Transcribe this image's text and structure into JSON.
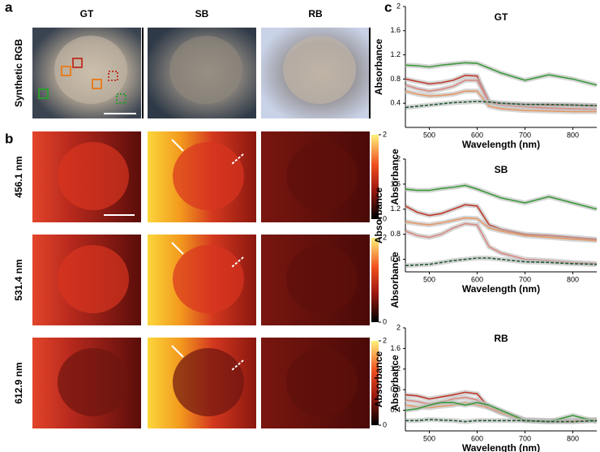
{
  "panels": {
    "a": {
      "letter": "a",
      "columns": [
        "GT",
        "SB",
        "RB"
      ],
      "row_label": "Synthetic RGB"
    },
    "b": {
      "letter": "b",
      "rows": [
        "456.1 nm",
        "531.4 nm",
        "612.9 nm"
      ],
      "colorbar_label": "Absorbance",
      "colorbar_ticks": [
        2,
        0
      ]
    },
    "c": {
      "letter": "c"
    }
  },
  "chart_data": [
    {
      "type": "line",
      "title": "GT",
      "x_label": "Wavelength (nm)",
      "y_label": "Absorbance",
      "xlim": [
        450,
        850
      ],
      "ylim": [
        0,
        2
      ],
      "xticks": [
        500,
        600,
        700,
        800
      ],
      "yticks": [
        0.4,
        0.8,
        1.2,
        1.6,
        2
      ],
      "x": [
        450,
        475,
        500,
        525,
        550,
        575,
        600,
        625,
        650,
        700,
        750,
        800,
        850
      ],
      "series": [
        {
          "color": "#3c9a3c",
          "values": [
            1.03,
            1.02,
            1.0,
            1.03,
            1.05,
            1.07,
            1.06,
            0.98,
            0.9,
            0.78,
            0.87,
            0.8,
            0.7
          ]
        },
        {
          "color": "#c0392b",
          "values": [
            0.8,
            0.76,
            0.72,
            0.74,
            0.78,
            0.86,
            0.85,
            0.42,
            0.4,
            0.38,
            0.37,
            0.37,
            0.36
          ]
        },
        {
          "color": "#d98880",
          "values": [
            0.7,
            0.64,
            0.6,
            0.63,
            0.68,
            0.78,
            0.78,
            0.42,
            0.37,
            0.34,
            0.32,
            0.31,
            0.3
          ]
        },
        {
          "color": "#e59866",
          "values": [
            0.6,
            0.55,
            0.52,
            0.53,
            0.55,
            0.6,
            0.6,
            0.35,
            0.31,
            0.28,
            0.27,
            0.26,
            0.26
          ]
        },
        {
          "color": "#1e5631",
          "dash": true,
          "values": [
            0.33,
            0.35,
            0.37,
            0.39,
            0.41,
            0.42,
            0.43,
            0.42,
            0.4,
            0.38,
            0.38,
            0.37,
            0.36
          ]
        }
      ]
    },
    {
      "type": "line",
      "title": "SB",
      "x_label": "Wavelength (nm)",
      "y_label": "Absorbance",
      "xlim": [
        450,
        850
      ],
      "ylim": [
        0.2,
        2
      ],
      "xticks": [
        500,
        600,
        700,
        800
      ],
      "yticks": [
        0.4,
        0.8,
        1.2,
        1.6,
        2
      ],
      "x": [
        450,
        475,
        500,
        525,
        550,
        575,
        600,
        625,
        650,
        700,
        750,
        800,
        850
      ],
      "series": [
        {
          "color": "#3c9a3c",
          "values": [
            1.52,
            1.5,
            1.5,
            1.53,
            1.55,
            1.58,
            1.52,
            1.45,
            1.38,
            1.3,
            1.4,
            1.3,
            1.2
          ]
        },
        {
          "color": "#c0392b",
          "values": [
            1.25,
            1.15,
            1.1,
            1.13,
            1.2,
            1.27,
            1.25,
            0.95,
            0.88,
            0.8,
            0.78,
            0.75,
            0.72
          ]
        },
        {
          "color": "#e59866",
          "values": [
            1.0,
            0.97,
            0.95,
            0.98,
            1.02,
            1.06,
            1.05,
            0.9,
            0.85,
            0.78,
            0.75,
            0.72,
            0.7
          ]
        },
        {
          "color": "#d98880",
          "values": [
            0.85,
            0.78,
            0.75,
            0.8,
            0.9,
            0.97,
            0.95,
            0.6,
            0.5,
            0.4,
            0.38,
            0.35,
            0.33
          ]
        },
        {
          "color": "#1e5631",
          "dash": true,
          "values": [
            0.3,
            0.31,
            0.32,
            0.35,
            0.38,
            0.4,
            0.42,
            0.42,
            0.4,
            0.36,
            0.35,
            0.33,
            0.32
          ]
        }
      ]
    },
    {
      "type": "line",
      "title": "RB",
      "x_label": "Wavelength (nm)",
      "y_label": "Absorbance",
      "xlim": [
        450,
        850
      ],
      "ylim": [
        0,
        2
      ],
      "xticks": [
        500,
        600,
        700,
        800
      ],
      "yticks": [
        0.4,
        0.8,
        1.2,
        1.6,
        2
      ],
      "x": [
        450,
        475,
        500,
        525,
        550,
        575,
        600,
        625,
        650,
        700,
        750,
        800,
        850
      ],
      "series": [
        {
          "color": "#c0392b",
          "values": [
            0.7,
            0.68,
            0.62,
            0.66,
            0.7,
            0.75,
            0.72,
            0.45,
            0.35,
            0.2,
            0.18,
            0.2,
            0.2
          ]
        },
        {
          "color": "#d98880",
          "values": [
            0.6,
            0.57,
            0.52,
            0.56,
            0.62,
            0.65,
            0.6,
            0.45,
            0.38,
            0.22,
            0.2,
            0.2,
            0.22
          ]
        },
        {
          "color": "#e59866",
          "values": [
            0.5,
            0.47,
            0.45,
            0.48,
            0.5,
            0.55,
            0.5,
            0.45,
            0.35,
            0.2,
            0.2,
            0.18,
            0.22
          ]
        },
        {
          "color": "#3c9a3c",
          "values": [
            0.4,
            0.43,
            0.5,
            0.55,
            0.55,
            0.5,
            0.55,
            0.5,
            0.4,
            0.2,
            0.18,
            0.3,
            0.18
          ]
        },
        {
          "color": "#1e5631",
          "dash": true,
          "values": [
            0.2,
            0.2,
            0.22,
            0.21,
            0.2,
            0.18,
            0.2,
            0.2,
            0.2,
            0.2,
            0.18,
            0.18,
            0.2
          ]
        }
      ]
    }
  ]
}
